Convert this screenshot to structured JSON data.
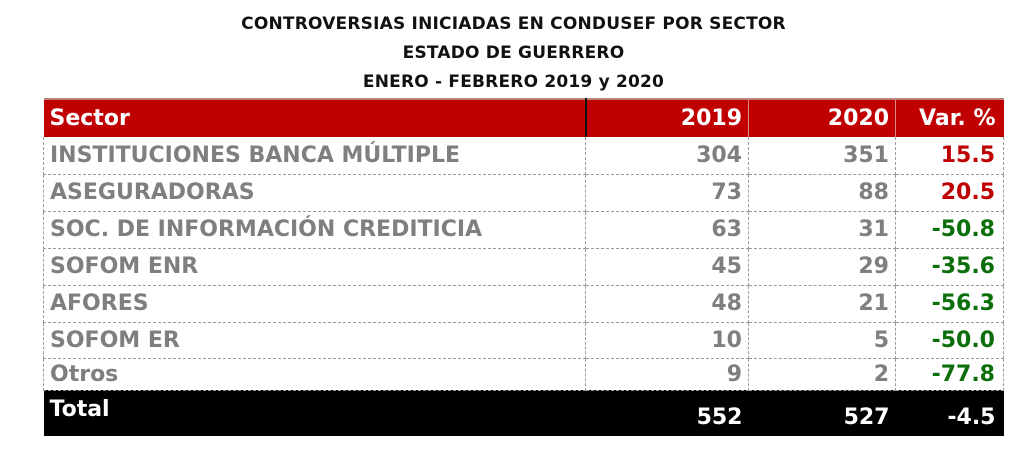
{
  "titles": {
    "line1": "CONTROVERSIAS INICIADAS EN CONDUSEF POR SECTOR",
    "line2": "ESTADO DE GUERRERO",
    "line3": "ENERO - FEBRERO 2019 y 2020"
  },
  "table": {
    "headers": [
      "Sector",
      "2019",
      "2020",
      "Var. %"
    ],
    "rows": [
      {
        "sector": "INSTITUCIONES BANCA MÚLTIPLE",
        "y2019": "304",
        "y2020": "351",
        "var": "15.5"
      },
      {
        "sector": "ASEGURADORAS",
        "y2019": "73",
        "y2020": "88",
        "var": "20.5"
      },
      {
        "sector": "SOC. DE INFORMACIÓN CREDITICIA",
        "y2019": "63",
        "y2020": "31",
        "var": "-50.8"
      },
      {
        "sector": "SOFOM ENR",
        "y2019": "45",
        "y2020": "29",
        "var": "-35.6"
      },
      {
        "sector": "AFORES",
        "y2019": "48",
        "y2020": "21",
        "var": "-56.3"
      },
      {
        "sector": "SOFOM ER",
        "y2019": "10",
        "y2020": "5",
        "var": "-50.0"
      },
      {
        "sector": "Otros",
        "y2019": "9",
        "y2020": "2",
        "var": "-77.8"
      }
    ],
    "total": {
      "sector": "Total",
      "y2019": "552",
      "y2020": "527",
      "var": "-4.5"
    }
  },
  "colors": {
    "header_bg": "#c00000",
    "positive_var": "#c00000",
    "negative_var": "#0b6e0b",
    "total_bg": "#000000",
    "body_text": "#7f7f7f"
  }
}
